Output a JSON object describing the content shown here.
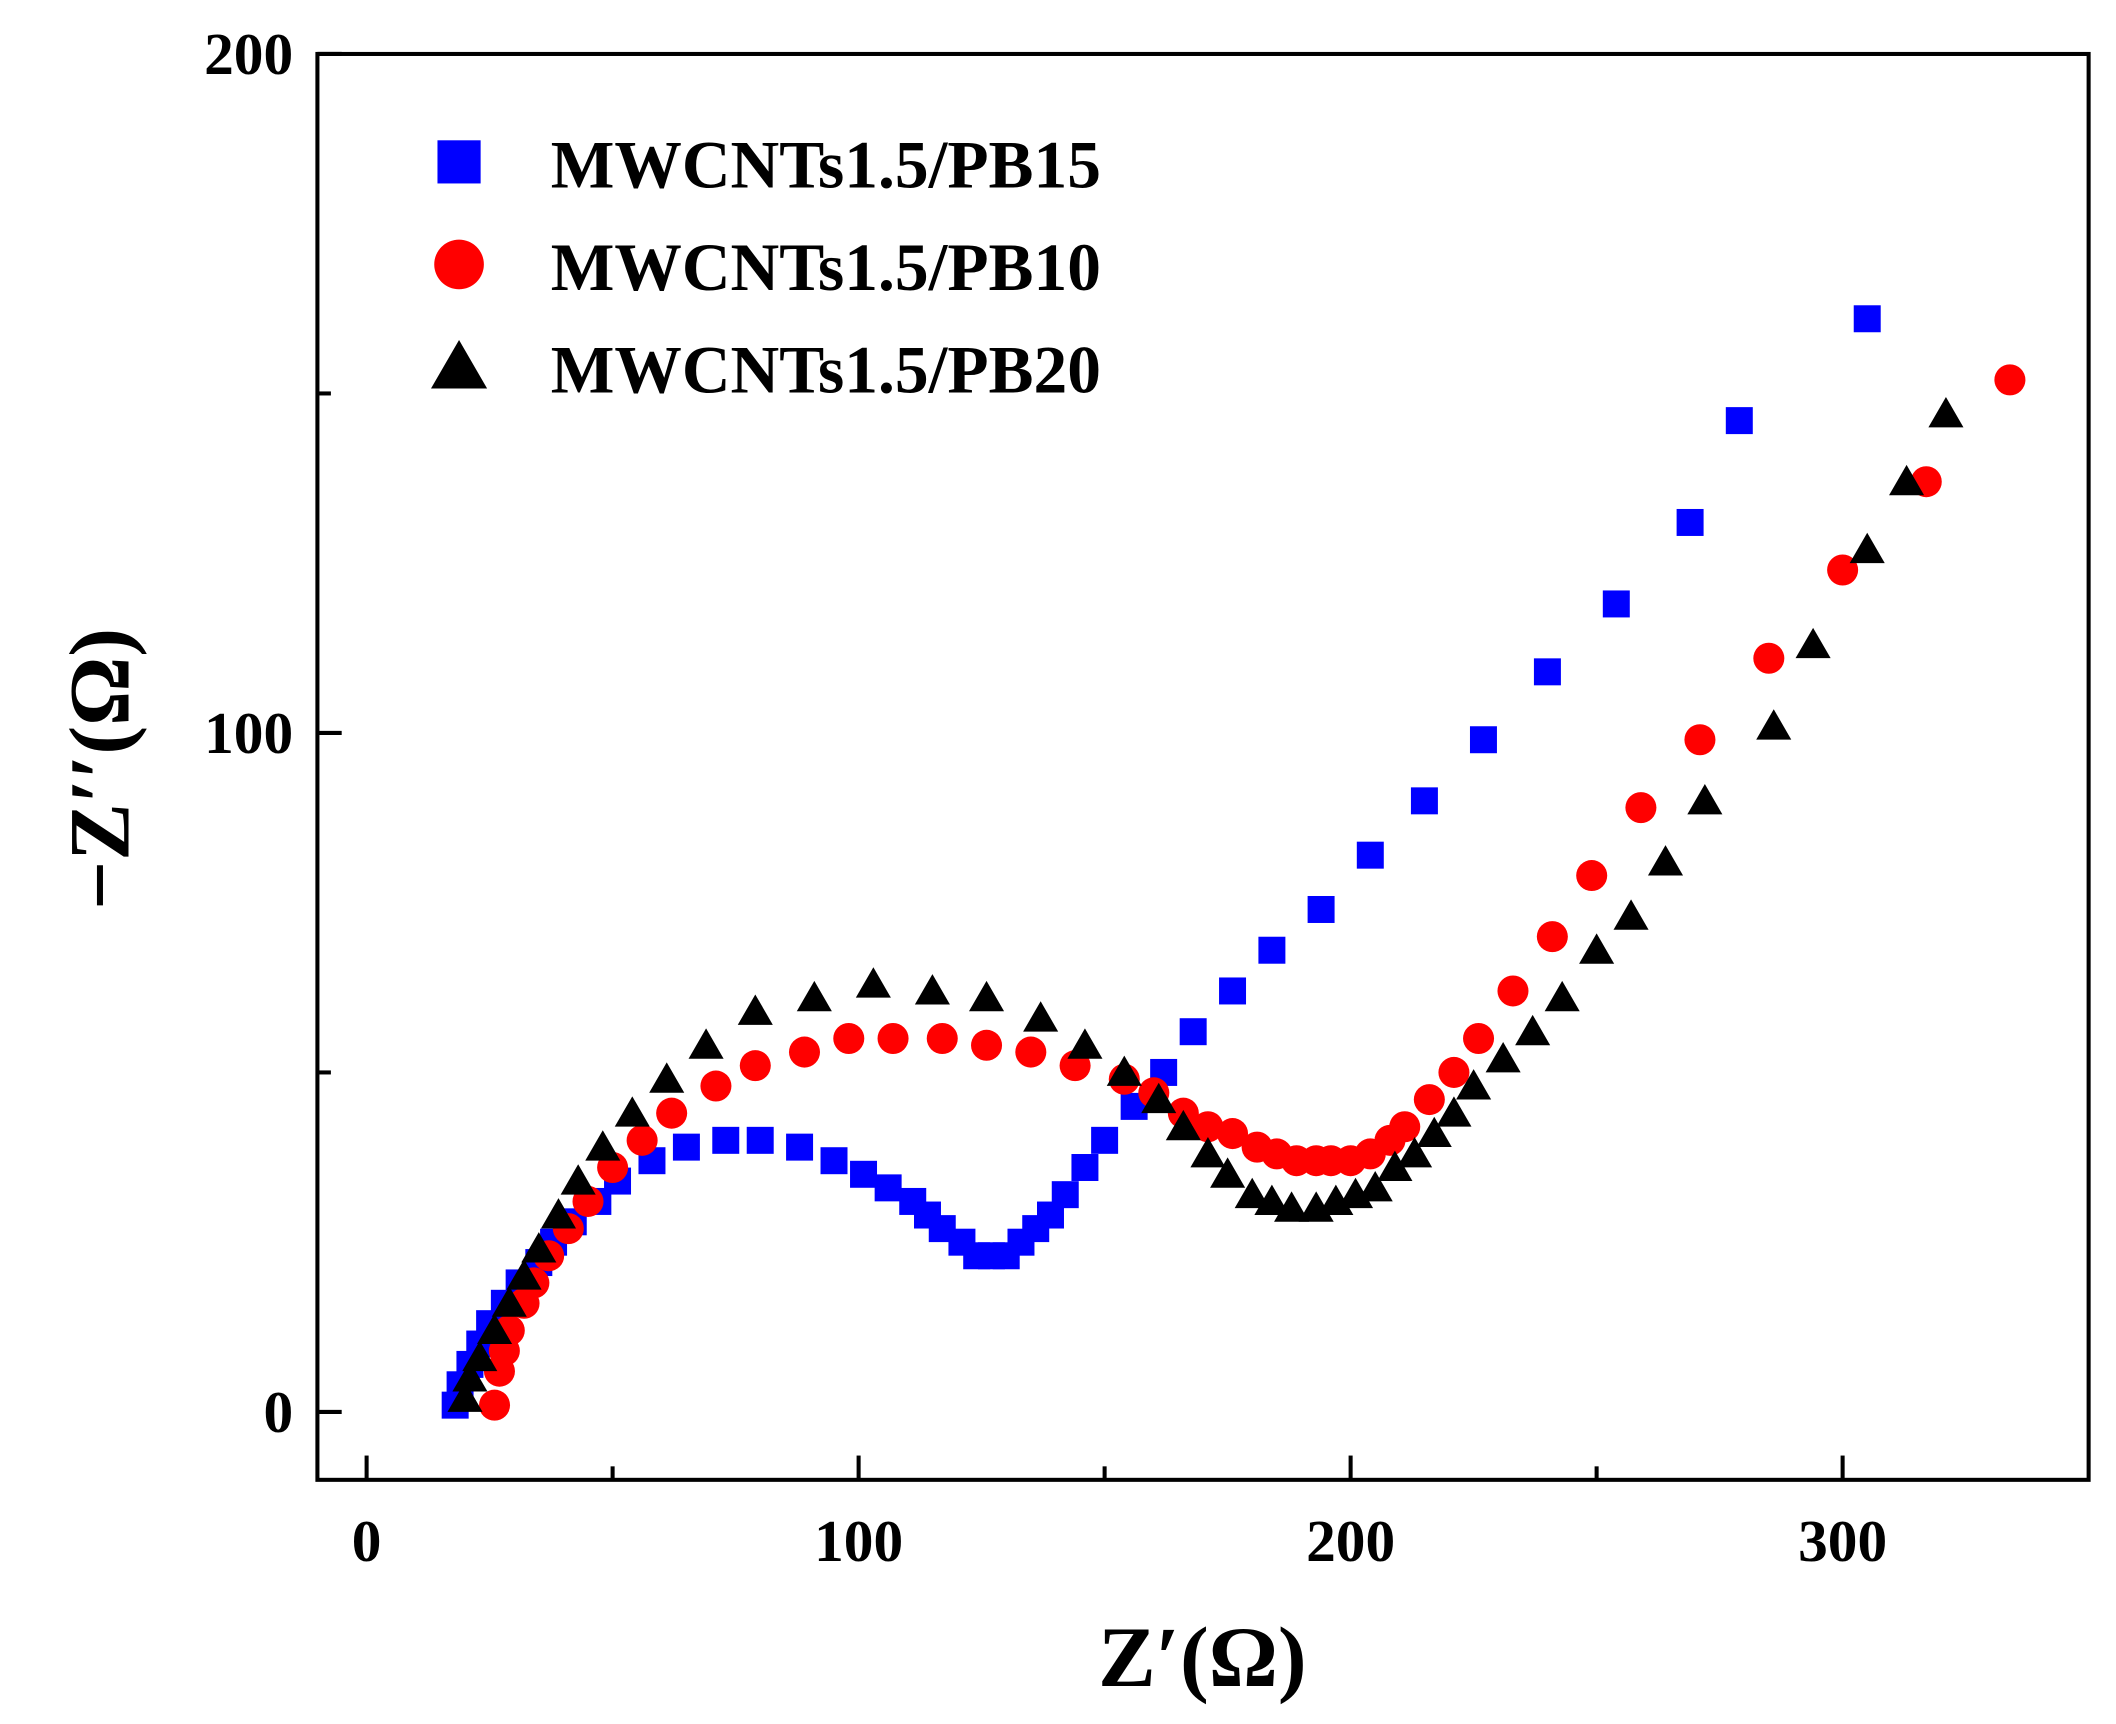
{
  "chart_data": {
    "type": "scatter",
    "title": "",
    "xlabel": "Z′(Ω)",
    "ylabel": "−Z′′(Ω)",
    "xlim": [
      -10,
      350
    ],
    "ylim": [
      -10,
      200
    ],
    "xticks": [
      0,
      100,
      200,
      300
    ],
    "xticks_minor": [
      50,
      150,
      250
    ],
    "yticks": [
      0,
      100,
      200
    ],
    "yticks_minor": [
      50,
      150
    ],
    "grid": false,
    "legend_position": "top-left",
    "series": [
      {
        "name": "MWCNTs1.5/PB15",
        "color": "#0000ff",
        "marker": "square",
        "points": [
          [
            18,
            1
          ],
          [
            19,
            4
          ],
          [
            21,
            7
          ],
          [
            23,
            10
          ],
          [
            25,
            13
          ],
          [
            28,
            16
          ],
          [
            31,
            19
          ],
          [
            35,
            22
          ],
          [
            38,
            25
          ],
          [
            42,
            28
          ],
          [
            47,
            31
          ],
          [
            51,
            34
          ],
          [
            58,
            37
          ],
          [
            65,
            39
          ],
          [
            73,
            40
          ],
          [
            80,
            40
          ],
          [
            88,
            39
          ],
          [
            95,
            37
          ],
          [
            101,
            35
          ],
          [
            106,
            33
          ],
          [
            111,
            31
          ],
          [
            114,
            29
          ],
          [
            117,
            27
          ],
          [
            121,
            25
          ],
          [
            124,
            23
          ],
          [
            127,
            23
          ],
          [
            130,
            23
          ],
          [
            133,
            25
          ],
          [
            136,
            27
          ],
          [
            139,
            29
          ],
          [
            142,
            32
          ],
          [
            146,
            36
          ],
          [
            150,
            40
          ],
          [
            156,
            45
          ],
          [
            162,
            50
          ],
          [
            168,
            56
          ],
          [
            176,
            62
          ],
          [
            184,
            68
          ],
          [
            194,
            74
          ],
          [
            204,
            82
          ],
          [
            215,
            90
          ],
          [
            227,
            99
          ],
          [
            240,
            109
          ],
          [
            254,
            119
          ],
          [
            269,
            131
          ],
          [
            279,
            146
          ],
          [
            305,
            161
          ]
        ]
      },
      {
        "name": "MWCNTs1.5/PB10",
        "color": "#ff0000",
        "marker": "circle",
        "points": [
          [
            26,
            1
          ],
          [
            27,
            6
          ],
          [
            28,
            9
          ],
          [
            29,
            12
          ],
          [
            32,
            16
          ],
          [
            34,
            19
          ],
          [
            37,
            23
          ],
          [
            41,
            27
          ],
          [
            45,
            31
          ],
          [
            50,
            36
          ],
          [
            56,
            40
          ],
          [
            62,
            44
          ],
          [
            71,
            48
          ],
          [
            79,
            51
          ],
          [
            89,
            53
          ],
          [
            98,
            55
          ],
          [
            107,
            55
          ],
          [
            117,
            55
          ],
          [
            126,
            54
          ],
          [
            135,
            53
          ],
          [
            144,
            51
          ],
          [
            154,
            49
          ],
          [
            160,
            47
          ],
          [
            166,
            44
          ],
          [
            171,
            42
          ],
          [
            176,
            41
          ],
          [
            181,
            39
          ],
          [
            185,
            38
          ],
          [
            189,
            37
          ],
          [
            193,
            37
          ],
          [
            196,
            37
          ],
          [
            200,
            37
          ],
          [
            204,
            38
          ],
          [
            208,
            40
          ],
          [
            211,
            42
          ],
          [
            216,
            46
          ],
          [
            221,
            50
          ],
          [
            226,
            55
          ],
          [
            233,
            62
          ],
          [
            241,
            70
          ],
          [
            249,
            79
          ],
          [
            259,
            89
          ],
          [
            271,
            99
          ],
          [
            285,
            111
          ],
          [
            300,
            124
          ],
          [
            317,
            137
          ],
          [
            334,
            152
          ]
        ]
      },
      {
        "name": "MWCNTs1.5/PB20",
        "color": "#000000",
        "marker": "triangle",
        "points": [
          [
            20,
            2
          ],
          [
            21,
            5
          ],
          [
            23,
            8
          ],
          [
            26,
            12
          ],
          [
            29,
            16
          ],
          [
            32,
            20
          ],
          [
            35,
            24
          ],
          [
            39,
            29
          ],
          [
            43,
            34
          ],
          [
            48,
            39
          ],
          [
            54,
            44
          ],
          [
            61,
            49
          ],
          [
            69,
            54
          ],
          [
            79,
            59
          ],
          [
            91,
            61
          ],
          [
            103,
            63
          ],
          [
            115,
            62
          ],
          [
            126,
            61
          ],
          [
            137,
            58
          ],
          [
            146,
            54
          ],
          [
            154,
            50
          ],
          [
            161,
            46
          ],
          [
            166,
            42
          ],
          [
            171,
            38
          ],
          [
            175,
            35
          ],
          [
            180,
            32
          ],
          [
            184,
            31
          ],
          [
            188,
            30
          ],
          [
            193,
            30
          ],
          [
            197,
            31
          ],
          [
            201,
            32
          ],
          [
            205,
            33
          ],
          [
            209,
            36
          ],
          [
            213,
            38
          ],
          [
            217,
            41
          ],
          [
            221,
            44
          ],
          [
            225,
            48
          ],
          [
            231,
            52
          ],
          [
            237,
            56
          ],
          [
            243,
            61
          ],
          [
            250,
            68
          ],
          [
            257,
            73
          ],
          [
            264,
            81
          ],
          [
            272,
            90
          ],
          [
            286,
            101
          ],
          [
            294,
            113
          ],
          [
            305,
            127
          ],
          [
            313,
            137
          ],
          [
            321,
            147
          ]
        ]
      }
    ]
  }
}
